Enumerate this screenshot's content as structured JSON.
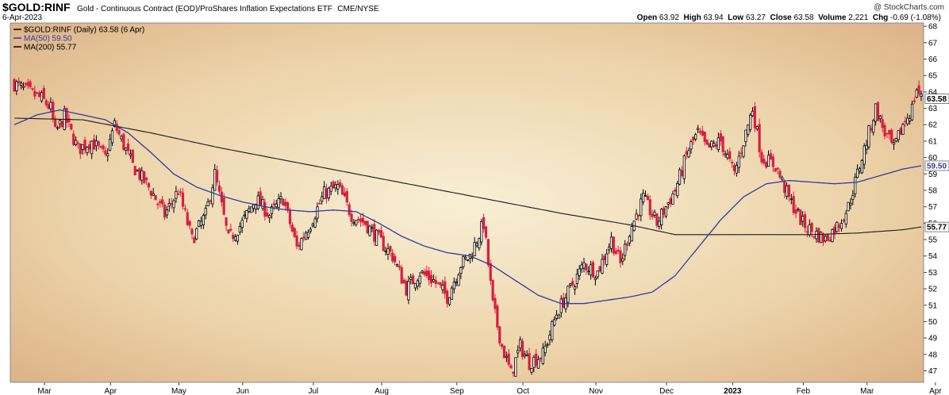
{
  "header": {
    "symbol": "$GOLD:RINF",
    "description": "Gold - Continuous Contract (EOD)/ProShares Inflation Expectations ETF",
    "exchange": "CME/NYSE",
    "date": "6-Apr-2023",
    "watermark": "@ StockCharts.com",
    "ohlc": {
      "open_label": "Open",
      "open": "63.92",
      "high_label": "High",
      "high": "63.94",
      "low_label": "Low",
      "low": "63.27",
      "close_label": "Close",
      "close": "63.58",
      "volume_label": "Volume",
      "volume": "2,221",
      "chg_label": "Chg",
      "chg": "-0.69 (-1.08%)"
    }
  },
  "legend": [
    {
      "text": "$GOLD:RINF (Daily) 63.58 (6 Apr)",
      "color": "#000000"
    },
    {
      "text": "MA(50) 59.50",
      "color": "#2f3b9e"
    },
    {
      "text": "MA(200) 55.77",
      "color": "#000000"
    }
  ],
  "colors": {
    "up": "#000000",
    "down": "#d81f3f",
    "ma50": "#2f3b9e",
    "ma200": "#1a1a1a",
    "bg_center": "#f8efd5",
    "bg_edge": "#d7a77d"
  },
  "chart_data": {
    "type": "candlestick",
    "title": "$GOLD:RINF (Daily) 63.58 (6 Apr)",
    "ylim": [
      46.3,
      68.2
    ],
    "y_ticks": [
      47,
      48,
      49,
      50,
      51,
      52,
      53,
      54,
      55,
      56,
      57,
      58,
      59,
      60,
      61,
      62,
      63,
      64,
      65,
      66,
      67,
      68
    ],
    "x_labels": [
      "Mar",
      "Apr",
      "May",
      "Jun",
      "Jul",
      "Aug",
      "Sep",
      "Oct",
      "Nov",
      "Dec",
      "2023",
      "Feb",
      "Mar",
      "Apr"
    ],
    "last_price_label": "63.58",
    "ma50_label": "59.50",
    "ma200_label": "55.77",
    "close_anchors": [
      [
        0,
        64.5
      ],
      [
        6,
        64.0
      ],
      [
        12,
        63.6
      ],
      [
        16,
        63.0
      ],
      [
        18,
        61.5
      ],
      [
        22,
        62.5
      ],
      [
        28,
        60.5
      ],
      [
        34,
        61.0
      ],
      [
        40,
        60.0
      ],
      [
        44,
        62.0
      ],
      [
        52,
        59.5
      ],
      [
        60,
        58.0
      ],
      [
        66,
        56.5
      ],
      [
        72,
        58.0
      ],
      [
        78,
        55.0
      ],
      [
        84,
        56.5
      ],
      [
        88,
        59.0
      ],
      [
        94,
        55.0
      ],
      [
        100,
        56.0
      ],
      [
        106,
        57.5
      ],
      [
        112,
        56.5
      ],
      [
        118,
        57.5
      ],
      [
        124,
        54.5
      ],
      [
        130,
        56.0
      ],
      [
        136,
        57.8
      ],
      [
        142,
        58.2
      ],
      [
        148,
        56.5
      ],
      [
        154,
        56.0
      ],
      [
        160,
        55.0
      ],
      [
        166,
        54.0
      ],
      [
        172,
        52.0
      ],
      [
        178,
        53.0
      ],
      [
        184,
        52.5
      ],
      [
        190,
        51.5
      ],
      [
        196,
        53.5
      ],
      [
        200,
        54.0
      ],
      [
        206,
        56.0
      ],
      [
        210,
        51.0
      ],
      [
        214,
        48.5
      ],
      [
        218,
        46.8
      ],
      [
        222,
        48.5
      ],
      [
        226,
        47.5
      ],
      [
        232,
        48.0
      ],
      [
        238,
        50.5
      ],
      [
        244,
        52.0
      ],
      [
        250,
        53.5
      ],
      [
        256,
        53.0
      ],
      [
        262,
        55.0
      ],
      [
        266,
        53.5
      ],
      [
        270,
        55.5
      ],
      [
        276,
        57.5
      ],
      [
        282,
        56.0
      ],
      [
        290,
        58.0
      ],
      [
        296,
        60.5
      ],
      [
        300,
        61.5
      ],
      [
        304,
        60.5
      ],
      [
        310,
        61.0
      ],
      [
        316,
        59.0
      ],
      [
        320,
        61.0
      ],
      [
        324,
        63.0
      ],
      [
        328,
        60.0
      ],
      [
        334,
        59.5
      ],
      [
        340,
        57.5
      ],
      [
        346,
        56.0
      ],
      [
        350,
        55.5
      ],
      [
        356,
        55.0
      ],
      [
        362,
        56.0
      ],
      [
        366,
        57.0
      ],
      [
        370,
        59.0
      ],
      [
        374,
        61.0
      ],
      [
        378,
        63.0
      ],
      [
        382,
        61.5
      ],
      [
        386,
        60.5
      ],
      [
        390,
        62.0
      ],
      [
        394,
        63.0
      ],
      [
        396,
        64.2
      ],
      [
        398,
        63.58
      ]
    ],
    "ma50_anchors": [
      [
        0,
        62.0
      ],
      [
        10,
        62.6
      ],
      [
        20,
        62.9
      ],
      [
        30,
        62.6
      ],
      [
        40,
        62.3
      ],
      [
        50,
        61.5
      ],
      [
        60,
        60.3
      ],
      [
        70,
        59.0
      ],
      [
        80,
        58.2
      ],
      [
        90,
        57.7
      ],
      [
        100,
        57.3
      ],
      [
        110,
        57.0
      ],
      [
        120,
        56.8
      ],
      [
        130,
        56.7
      ],
      [
        140,
        56.8
      ],
      [
        150,
        56.7
      ],
      [
        160,
        56.0
      ],
      [
        170,
        55.2
      ],
      [
        180,
        54.6
      ],
      [
        190,
        54.2
      ],
      [
        200,
        54.0
      ],
      [
        210,
        53.4
      ],
      [
        220,
        52.5
      ],
      [
        230,
        51.6
      ],
      [
        240,
        51.1
      ],
      [
        250,
        51.1
      ],
      [
        260,
        51.3
      ],
      [
        270,
        51.5
      ],
      [
        280,
        51.8
      ],
      [
        290,
        52.8
      ],
      [
        300,
        54.5
      ],
      [
        310,
        56.2
      ],
      [
        320,
        57.6
      ],
      [
        330,
        58.4
      ],
      [
        340,
        58.6
      ],
      [
        350,
        58.5
      ],
      [
        360,
        58.4
      ],
      [
        370,
        58.5
      ],
      [
        380,
        58.9
      ],
      [
        390,
        59.3
      ],
      [
        398,
        59.5
      ]
    ],
    "ma200_anchors": [
      [
        0,
        62.4
      ],
      [
        30,
        62.3
      ],
      [
        60,
        61.5
      ],
      [
        90,
        60.6
      ],
      [
        120,
        59.8
      ],
      [
        150,
        59.0
      ],
      [
        180,
        58.2
      ],
      [
        210,
        57.4
      ],
      [
        240,
        56.6
      ],
      [
        270,
        55.9
      ],
      [
        290,
        55.3
      ],
      [
        310,
        55.3
      ],
      [
        330,
        55.3
      ],
      [
        350,
        55.3
      ],
      [
        370,
        55.4
      ],
      [
        390,
        55.6
      ],
      [
        398,
        55.77
      ]
    ],
    "grid": false,
    "legend_position": "top-left"
  }
}
